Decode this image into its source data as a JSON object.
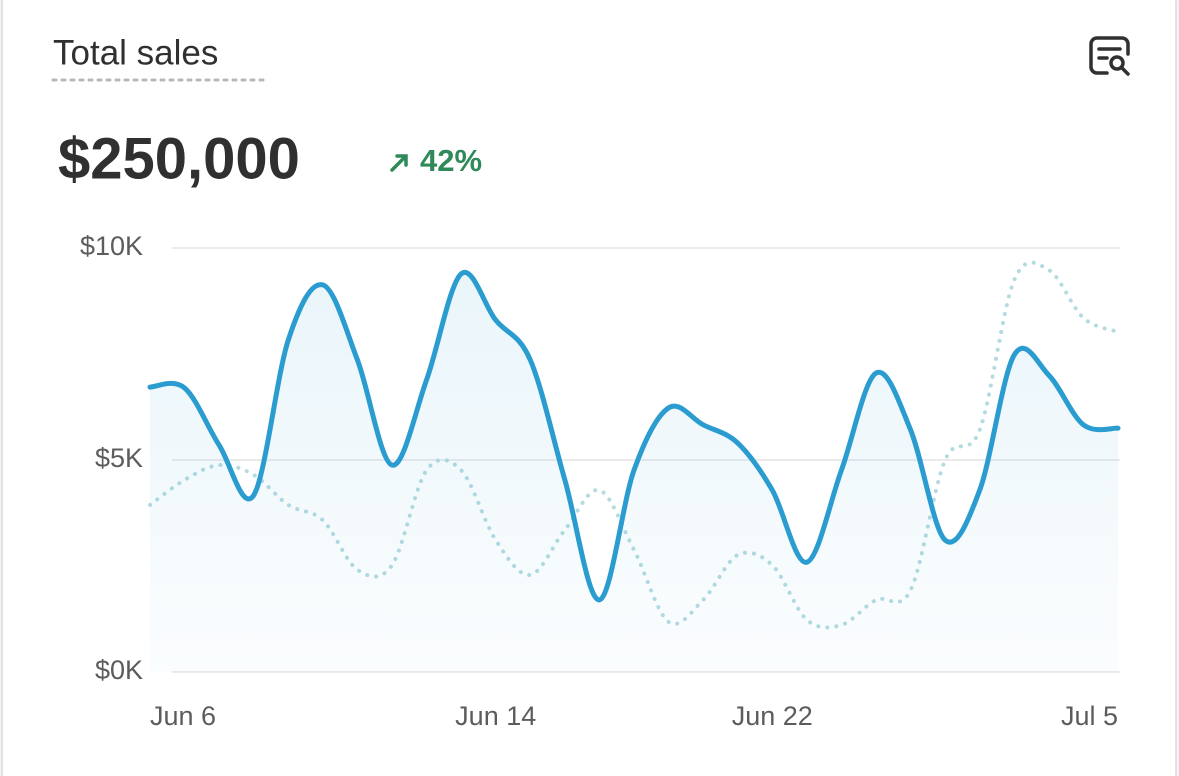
{
  "chart_data": {
    "type": "line",
    "title": "Total sales",
    "total": "$250,000",
    "change": "42%",
    "categories": [
      "Jun 6",
      null,
      null,
      null,
      null,
      null,
      null,
      null,
      null,
      null,
      "Jun 14",
      null,
      null,
      null,
      null,
      null,
      null,
      null,
      "Jun 22",
      null,
      null,
      null,
      null,
      null,
      null,
      null,
      null,
      null,
      "Jul 5"
    ],
    "series": [
      {
        "color": "#2b9ccf",
        "style": "solid",
        "values": [
          6720,
          6700,
          5350,
          4170,
          7830,
          9130,
          7360,
          4880,
          6890,
          9390,
          8300,
          7360,
          4530,
          1700,
          4760,
          6230,
          5830,
          5400,
          4290,
          2590,
          4760,
          7050,
          5710,
          3110,
          4290,
          7480,
          7000,
          5830,
          5750
        ]
      },
      {
        "color": "#b4dbe0",
        "style": "dotted",
        "values": [
          3940,
          4530,
          4880,
          4650,
          3940,
          3580,
          2410,
          2520,
          4760,
          4760,
          3110,
          2290,
          3350,
          4290,
          2880,
          1180,
          1700,
          2760,
          2520,
          1230,
          1110,
          1700,
          1930,
          5000,
          5710,
          9250,
          9480,
          8350,
          8020
        ]
      }
    ],
    "ylim": [
      0,
      10000
    ],
    "yticks": [
      {
        "value": 0,
        "label": "$0K"
      },
      {
        "value": 5000,
        "label": "$5K"
      },
      {
        "value": 10000,
        "label": "$10K"
      }
    ],
    "grid": true
  }
}
